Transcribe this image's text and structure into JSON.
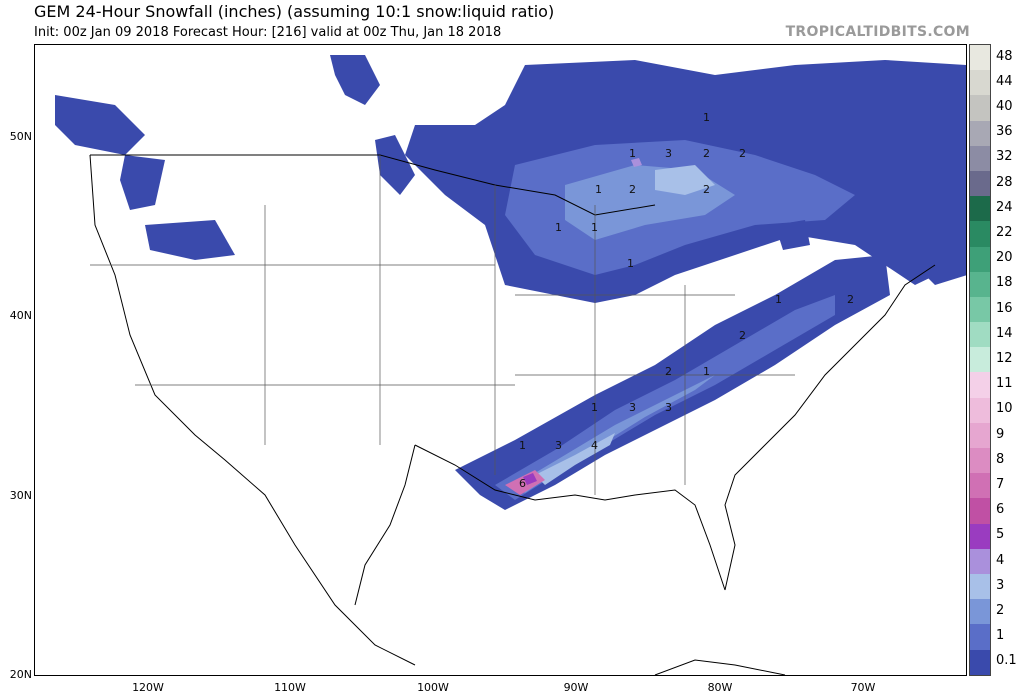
{
  "header": {
    "title": "GEM 24-Hour Snowfall (inches) (assuming 10:1 snow:liquid ratio)",
    "subtitle": "Init: 00z Jan 09 2018   Forecast Hour: [216]   valid at 00z Thu, Jan 18 2018",
    "brand": "TROPICALTIDBITS.COM"
  },
  "axes": {
    "lat_labels": [
      "50N",
      "40N",
      "30N",
      "20N"
    ],
    "lon_labels": [
      "120W",
      "110W",
      "100W",
      "90W",
      "80W",
      "70W"
    ]
  },
  "colorbar": {
    "levels": [
      "48",
      "44",
      "40",
      "36",
      "32",
      "28",
      "24",
      "22",
      "20",
      "18",
      "16",
      "14",
      "12",
      "11",
      "10",
      "9",
      "8",
      "7",
      "6",
      "5",
      "4",
      "3",
      "2",
      "1",
      "0.1"
    ],
    "colors": [
      "#e8e8e0",
      "#d8d8d0",
      "#c4c4c0",
      "#a8a8b4",
      "#8c8ca4",
      "#6a6a8c",
      "#1c6a4a",
      "#2a8a62",
      "#3ea078",
      "#58b48e",
      "#78c8a6",
      "#a0dcc2",
      "#c8ecdc",
      "#f4d0e8",
      "#eebcdc",
      "#e6a6d0",
      "#dc8cc2",
      "#d070b4",
      "#c050a4",
      "#9a3cc0",
      "#aa90dc",
      "#a8c0e8",
      "#7a96d8",
      "#5a6ec8",
      "#3a4aac"
    ]
  },
  "map_labels": [
    {
      "text": "1"
    },
    {
      "text": "3"
    },
    {
      "text": "2"
    },
    {
      "text": "2"
    },
    {
      "text": "1"
    },
    {
      "text": "2"
    },
    {
      "text": "1"
    },
    {
      "text": "2"
    },
    {
      "text": "1"
    },
    {
      "text": "1"
    },
    {
      "text": "1"
    },
    {
      "text": "1"
    },
    {
      "text": "1"
    },
    {
      "text": "2"
    },
    {
      "text": "2"
    },
    {
      "text": "2"
    },
    {
      "text": "1"
    },
    {
      "text": "3"
    },
    {
      "text": "3"
    },
    {
      "text": "3"
    },
    {
      "text": "4"
    },
    {
      "text": "6"
    },
    {
      "text": "1"
    }
  ]
}
